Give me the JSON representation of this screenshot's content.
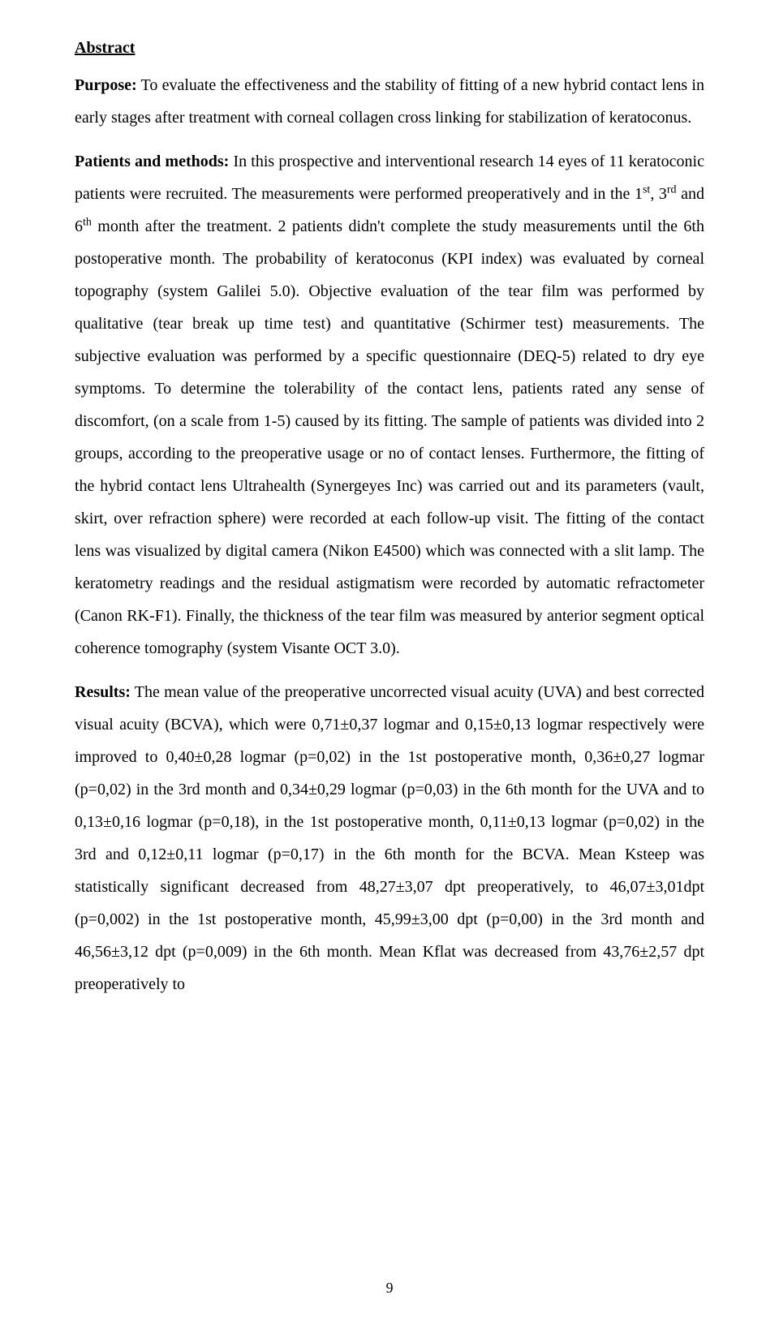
{
  "heading": "Abstract",
  "purpose_label": "Purpose:",
  "purpose_text": " To evaluate the effectiveness and the stability of fitting of a new hybrid contact lens in early stages after treatment with corneal collagen cross linking for stabilization of keratoconus.",
  "methods_label": "Patients and methods:",
  "methods_pre": " In this prospective and interventional research 14 eyes of 11 keratoconic patients were recruited. The measurements were performed preoperatively and in the 1",
  "sup1": "st",
  "methods_mid1": ", 3",
  "sup2": "rd",
  "methods_mid2": " and 6",
  "sup3": "th",
  "methods_post": " month after the treatment. 2 patients didn't complete the study measurements until the 6th postoperative month. The probability of keratoconus (KPI index) was evaluated by corneal topography (system Galilei 5.0). Objective evaluation of the tear film was performed by qualitative (tear break up time test) and quantitative (Schirmer test) measurements. The subjective evaluation was performed by a specific questionnaire (DEQ-5) related to dry eye symptoms. To determine the tolerability of the contact lens, patients rated any sense of discomfort, (on a scale from 1-5) caused by its fitting. The sample of patients was divided into 2 groups, according to the preoperative usage or no of contact lenses. Furthermore, the fitting of the hybrid contact lens Ultrahealth (Synergeyes Inc) was carried out and its parameters (vault, skirt, over refraction sphere) were recorded at each follow-up visit. The fitting of the contact lens was visualized by digital camera (Nikon E4500) which was connected with a slit lamp. The keratometry readings and the residual astigmatism were recorded by automatic refractometer (Canon RK-F1). Finally, the thickness of the tear film was measured by anterior segment optical coherence tomography (system Visante OCT 3.0).",
  "results_label": "Results:",
  "results_text": " The mean value of the preoperative uncorrected visual acuity (UVA) and best corrected visual acuity (BCVA), which were 0,71±0,37 logmar and 0,15±0,13 logmar respectively were improved to 0,40±0,28 logmar (p=0,02) in the 1st postoperative month, 0,36±0,27 logmar (p=0,02) in the 3rd month and 0,34±0,29 logmar (p=0,03) in the 6th month for the UVA and to 0,13±0,16 logmar (p=0,18), in the 1st postoperative month, 0,11±0,13 logmar (p=0,02) in the 3rd and 0,12±0,11 logmar (p=0,17) in the 6th month for the BCVA. Mean Ksteep was statistically significant decreased from 48,27±3,07 dpt preoperatively, to 46,07±3,01dpt (p=0,002) in the 1st postoperative month, 45,99±3,00 dpt (p=0,00) in the 3rd month and 46,56±3,12 dpt (p=0,009) in the 6th month. Mean Kflat was decreased from 43,76±2,57 dpt preoperatively to",
  "page_number": "9"
}
